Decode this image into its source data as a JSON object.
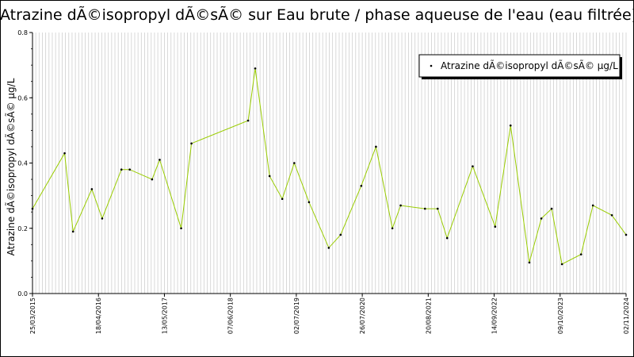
{
  "chart_data": {
    "type": "line",
    "title": "Atrazine dÃ©isopropyl dÃ©sÃ© sur Eau brute / phase aqueuse de l'eau (eau filtrée)",
    "ylabel": "Atrazine dÃ©isopropyl dÃ©sÃ© µg/L",
    "xlabel": "",
    "ylim": [
      0,
      0.8
    ],
    "yticks": [
      "0.0",
      "0.2",
      "0.4",
      "0.6",
      "0.8"
    ],
    "xlim": [
      "2015-03-25",
      "2024-11-02"
    ],
    "xtick_labels": [
      {
        "date": "2015-03-25",
        "label": "25/03/2015"
      },
      {
        "date": "2016-04-18",
        "label": "18/04/2016"
      },
      {
        "date": "2017-05-13",
        "label": "13/05/2017"
      },
      {
        "date": "2018-06-07",
        "label": "07/06/2018"
      },
      {
        "date": "2019-07-02",
        "label": "02/07/2019"
      },
      {
        "date": "2020-07-26",
        "label": "26/07/2020"
      },
      {
        "date": "2021-08-20",
        "label": "20/08/2021"
      },
      {
        "date": "2022-09-14",
        "label": "14/09/2022"
      },
      {
        "date": "2023-10-09",
        "label": "09/10/2023"
      },
      {
        "date": "2024-11-02",
        "label": "02/11/2024"
      }
    ],
    "grid": "vertical",
    "legend_position": "top-right",
    "series": [
      {
        "name": "Atrazine dÃ©isopropyl dÃ©sÃ© µg/L",
        "color": "#99cc00",
        "points": [
          {
            "x": "2015-03-25",
            "y": 0.26
          },
          {
            "x": "2015-10-01",
            "y": 0.43
          },
          {
            "x": "2015-11-20",
            "y": 0.19
          },
          {
            "x": "2016-03-10",
            "y": 0.32
          },
          {
            "x": "2016-05-10",
            "y": 0.23
          },
          {
            "x": "2016-09-01",
            "y": 0.38
          },
          {
            "x": "2016-10-20",
            "y": 0.38
          },
          {
            "x": "2017-03-01",
            "y": 0.35
          },
          {
            "x": "2017-04-15",
            "y": 0.41
          },
          {
            "x": "2017-08-20",
            "y": 0.2
          },
          {
            "x": "2017-10-20",
            "y": 0.46
          },
          {
            "x": "2018-09-20",
            "y": 0.53
          },
          {
            "x": "2018-11-01",
            "y": 0.69
          },
          {
            "x": "2019-01-25",
            "y": 0.36
          },
          {
            "x": "2019-04-10",
            "y": 0.29
          },
          {
            "x": "2019-06-20",
            "y": 0.4
          },
          {
            "x": "2019-09-15",
            "y": 0.28
          },
          {
            "x": "2020-01-10",
            "y": 0.14
          },
          {
            "x": "2020-03-20",
            "y": 0.18
          },
          {
            "x": "2020-07-20",
            "y": 0.33
          },
          {
            "x": "2020-10-15",
            "y": 0.45
          },
          {
            "x": "2021-01-20",
            "y": 0.2
          },
          {
            "x": "2021-03-10",
            "y": 0.27
          },
          {
            "x": "2021-08-01",
            "y": 0.26
          },
          {
            "x": "2021-10-15",
            "y": 0.26
          },
          {
            "x": "2021-12-10",
            "y": 0.17
          },
          {
            "x": "2022-05-10",
            "y": 0.39
          },
          {
            "x": "2022-09-20",
            "y": 0.205
          },
          {
            "x": "2022-12-20",
            "y": 0.515
          },
          {
            "x": "2023-04-10",
            "y": 0.095
          },
          {
            "x": "2023-06-20",
            "y": 0.23
          },
          {
            "x": "2023-08-20",
            "y": 0.26
          },
          {
            "x": "2023-10-20",
            "y": 0.09
          },
          {
            "x": "2024-02-10",
            "y": 0.12
          },
          {
            "x": "2024-04-20",
            "y": 0.27
          },
          {
            "x": "2024-08-10",
            "y": 0.24
          },
          {
            "x": "2024-11-02",
            "y": 0.18
          }
        ]
      }
    ]
  }
}
